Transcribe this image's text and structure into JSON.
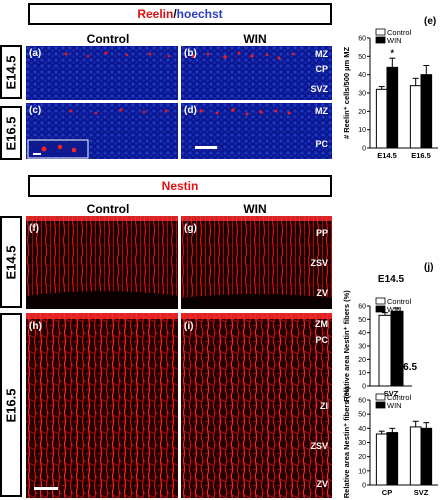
{
  "reelin_title": {
    "reelin": "Reelin",
    "slash": "/",
    "hoechst": "hoechst"
  },
  "nestin_title": "Nestin",
  "col_control": "Control",
  "col_win": "WIN",
  "stages": {
    "e145": "E14.5",
    "e165": "E16.5"
  },
  "panels": {
    "a": "(a)",
    "b": "(b)",
    "c": "(c)",
    "d": "(d)",
    "f": "(f)",
    "g": "(g)",
    "h": "(h)",
    "i": "(i)"
  },
  "regions": {
    "b": [
      "MZ",
      "CP",
      "SVZ"
    ],
    "d": [
      "MZ",
      "PC"
    ],
    "g": [
      "PP",
      "ZSV",
      "ZV"
    ],
    "i": [
      "ZM",
      "PC",
      "ZI",
      "ZSV",
      "ZV"
    ]
  },
  "colors": {
    "reelin": "#dd1111",
    "hoechst": "#2b3fc7",
    "nestin": "#e01010",
    "control_bar": "#ffffff",
    "win_bar": "#000000"
  },
  "chart_data": [
    {
      "panel_label": "(e)",
      "type": "bar",
      "categories": [
        "E14.5",
        "E16.5"
      ],
      "series": [
        {
          "name": "Control",
          "values": [
            32,
            34
          ],
          "errors": [
            1.5,
            4
          ]
        },
        {
          "name": "WIN",
          "values": [
            44,
            40
          ],
          "errors": [
            5,
            5
          ]
        }
      ],
      "ylabel": "# Reelin⁺ cells/500 µm MZ",
      "ylim": [
        0,
        60
      ],
      "yticks": [
        0,
        10,
        20,
        30,
        40,
        50,
        60
      ],
      "significance": [
        {
          "category": "E14.5",
          "mark": "*"
        }
      ],
      "legend": "top"
    },
    {
      "panel_label": "(j)",
      "type": "bar",
      "title": "E14.5",
      "categories": [
        "SVZ"
      ],
      "series": [
        {
          "name": "Control",
          "values": [
            53
          ],
          "errors": [
            2
          ]
        },
        {
          "name": "WIN",
          "values": [
            56
          ],
          "errors": [
            2.5
          ]
        }
      ],
      "ylabel": "Relative area Nestin⁺ fibers (%)",
      "ylim": [
        0,
        60
      ],
      "yticks": [
        0,
        10,
        20,
        30,
        40,
        50,
        60
      ],
      "legend": "top"
    },
    {
      "type": "bar",
      "title": "E16.5",
      "categories": [
        "CP",
        "SVZ"
      ],
      "series": [
        {
          "name": "Control",
          "values": [
            36,
            41
          ],
          "errors": [
            2,
            4
          ]
        },
        {
          "name": "WIN",
          "values": [
            37,
            40
          ],
          "errors": [
            3,
            4
          ]
        }
      ],
      "ylabel": "Relative area Nestin⁺ fibers (%)",
      "ylim": [
        0,
        60
      ],
      "yticks": [
        0,
        10,
        20,
        30,
        40,
        50,
        60
      ],
      "legend": "top"
    }
  ]
}
